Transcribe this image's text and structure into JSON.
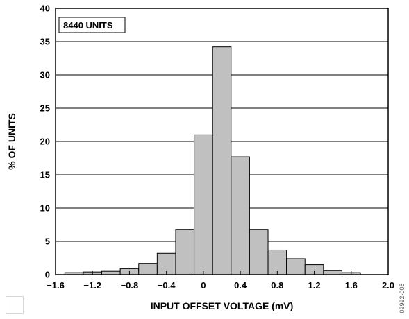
{
  "chart_data": {
    "type": "bar",
    "subtype": "histogram",
    "title": "",
    "xlabel": "INPUT OFFSET VOLTAGE (mV)",
    "ylabel": "% OF UNITS",
    "annotation": "8440 UNITS",
    "figure_id": "02992-005",
    "xlim": [
      -1.6,
      2.0
    ],
    "ylim": [
      0,
      40
    ],
    "x_ticks": [
      -1.6,
      -1.2,
      -0.8,
      -0.4,
      0,
      0.4,
      0.8,
      1.2,
      1.6,
      2.0
    ],
    "x_tick_labels": [
      "−1.6",
      "−1.2",
      "−0.8",
      "−0.4",
      "0",
      "0.4",
      "0.8",
      "1.2",
      "1.6",
      "2.0"
    ],
    "y_ticks": [
      0,
      5,
      10,
      15,
      20,
      25,
      30,
      35,
      40
    ],
    "y_tick_labels": [
      "0",
      "5",
      "10",
      "15",
      "20",
      "25",
      "30",
      "35",
      "40"
    ],
    "grid": "horizontal",
    "bar_color": "#c0c0c0",
    "bins": [
      {
        "x0": -1.5,
        "x1": -1.3,
        "value": 0.3
      },
      {
        "x0": -1.3,
        "x1": -1.1,
        "value": 0.4
      },
      {
        "x0": -1.1,
        "x1": -0.9,
        "value": 0.5
      },
      {
        "x0": -0.9,
        "x1": -0.7,
        "value": 0.9
      },
      {
        "x0": -0.7,
        "x1": -0.5,
        "value": 1.7
      },
      {
        "x0": -0.5,
        "x1": -0.3,
        "value": 3.2
      },
      {
        "x0": -0.3,
        "x1": -0.1,
        "value": 6.8
      },
      {
        "x0": -0.1,
        "x1": 0.1,
        "value": 21.0
      },
      {
        "x0": 0.1,
        "x1": 0.3,
        "value": 34.2
      },
      {
        "x0": 0.3,
        "x1": 0.5,
        "value": 17.7
      },
      {
        "x0": 0.5,
        "x1": 0.7,
        "value": 6.8
      },
      {
        "x0": 0.7,
        "x1": 0.9,
        "value": 3.7
      },
      {
        "x0": 0.9,
        "x1": 1.1,
        "value": 2.4
      },
      {
        "x0": 1.1,
        "x1": 1.3,
        "value": 1.5
      },
      {
        "x0": 1.3,
        "x1": 1.5,
        "value": 0.6
      },
      {
        "x0": 1.5,
        "x1": 1.7,
        "value": 0.3
      }
    ]
  }
}
